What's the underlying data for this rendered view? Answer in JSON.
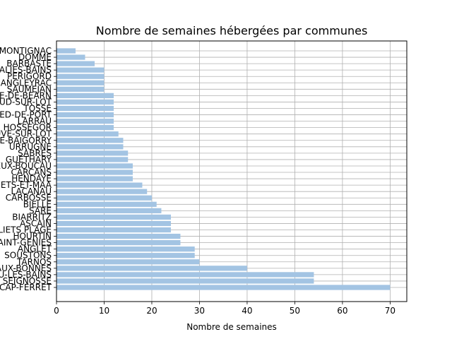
{
  "chart_data": {
    "type": "bar",
    "orientation": "horizontal",
    "title": "Nombre de semaines hébergées par communes",
    "xlabel": "Nombre de semaines",
    "ylabel": "",
    "xlim": [
      0,
      73.5
    ],
    "xticks": [
      0,
      10,
      20,
      30,
      40,
      50,
      60,
      70
    ],
    "grid": true,
    "bar_color": "#a3c4e3",
    "categories": [
      "LÈGE-CAP-FERRET",
      "SEIGNOSSE",
      "VIEUX-BOUCAU-LES-BAINS",
      "EAUX-BONNES",
      "TARNOS",
      "SOUSTONS",
      "ANGLET",
      "SAINT-GENIES",
      "HOURTIN",
      "MOLIETS PLAGE",
      "ASCAIN",
      "BIARRITZ",
      "SARE",
      "BIELLE",
      "CARBOSSE",
      "LACANAU",
      "MOLIETS-ET-MAA",
      "HENDAYE",
      "CARCANS",
      "VIEUX-BOUCAU",
      "GUETHARY",
      "SABRES",
      "URRUGNE",
      "SAINT-ETIENNE-DE-BAIGORRY",
      "VILLENEUVE-SUR-LOT",
      "HOSSEGOR",
      "LARRAU",
      "SAINT-JEAN-PIED-DE-PORT",
      "TOSSE",
      "CASTELNAUD-SUR-LOT",
      "SAUVETERRE-DE-BEARN",
      "SAUMEJAN",
      "ANGLEYRAC",
      "PERIGORD",
      "SALIES-BAINS",
      "BARBASTE",
      "DOMME",
      "MONTIGNAC"
    ],
    "values": [
      70,
      54,
      54,
      40,
      30,
      29,
      29,
      26,
      26,
      24,
      24,
      24,
      22,
      21,
      20,
      19,
      18,
      16,
      16,
      16,
      15,
      15,
      14,
      14,
      13,
      12,
      12,
      12,
      12,
      12,
      12,
      10,
      10,
      10,
      10,
      8,
      6,
      4
    ]
  }
}
